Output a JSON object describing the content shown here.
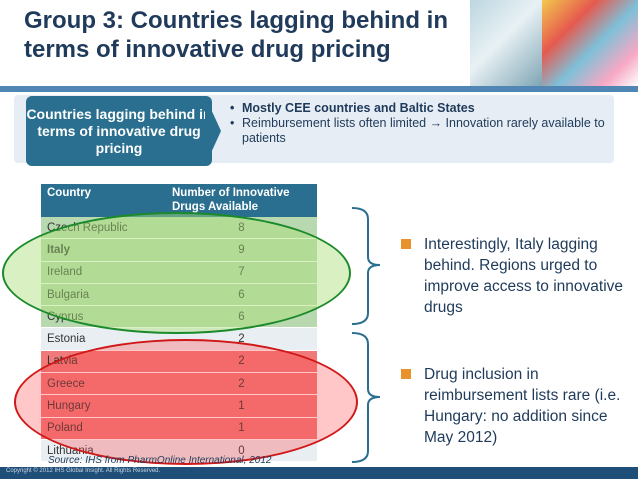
{
  "slide": {
    "title": "Group 3: Countries lagging behind in terms of innovative drug pricing",
    "banner_label": "Countries lagging behind in terms of innovative drug pricing",
    "banner_bullets": [
      "Mostly CEE countries and Baltic States",
      "Reimbursement lists often limited → Innovation rarely available to patients"
    ],
    "table": {
      "headers": [
        "Country",
        "Number of Innovative Drugs Available"
      ],
      "rows": [
        {
          "country": "Czech Republic",
          "value": "8"
        },
        {
          "country": "Italy",
          "value": "9"
        },
        {
          "country": "Ireland",
          "value": "7"
        },
        {
          "country": "Bulgaria",
          "value": "6"
        },
        {
          "country": "Cyprus",
          "value": "6"
        },
        {
          "country": "Estonia",
          "value": "2"
        },
        {
          "country": "Latvia",
          "value": "2"
        },
        {
          "country": "Greece",
          "value": "2"
        },
        {
          "country": "Hungary",
          "value": "1"
        },
        {
          "country": "Poland",
          "value": "1"
        },
        {
          "country": "Lithuania",
          "value": "0"
        }
      ]
    },
    "callouts": [
      "Interestingly, Italy lagging behind. Regions urged to improve access to innovative drugs",
      "Drug inclusion in reimbursement lists rare (i.e. Hungary: no addition since May 2012)"
    ],
    "source": "Source: IHS from PharmOnline International, 2012",
    "copyright": "Copyright © 2012 IHS Global Insight. All Rights Reserved."
  },
  "colors": {
    "title": "#1f3a5a",
    "accent_teal": "#2a6f8f",
    "bullet_orange": "#e8922b",
    "ellipse_green": "#1b8a2a",
    "ellipse_red": "#d01818"
  }
}
